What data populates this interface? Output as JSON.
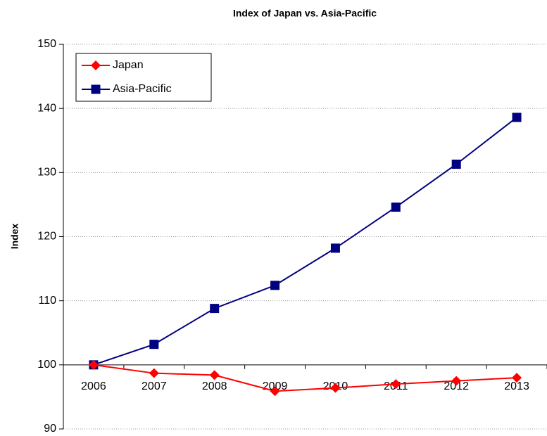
{
  "chart_data": {
    "type": "line",
    "title": "Index of Japan vs. Asia-Pacific",
    "y_label": "Index",
    "categories": [
      "2006",
      "2007",
      "2008",
      "2009",
      "2010",
      "2011",
      "2012",
      "2013"
    ],
    "series": [
      {
        "name": "Japan",
        "color": "#ff0000",
        "marker": "diamond",
        "values": [
          100,
          98.7,
          98.4,
          95.9,
          96.4,
          97.0,
          97.5,
          98.0
        ]
      },
      {
        "name": "Asia-Pacific",
        "color": "#000080",
        "marker": "square",
        "values": [
          100,
          103.2,
          108.8,
          112.4,
          118.2,
          124.6,
          131.3,
          138.6
        ]
      }
    ],
    "ylim": [
      90,
      150
    ],
    "yticks": [
      90,
      100,
      110,
      120,
      130,
      140,
      150
    ],
    "x_axis_crossing": 100,
    "grid": true,
    "legend": "top-left"
  }
}
